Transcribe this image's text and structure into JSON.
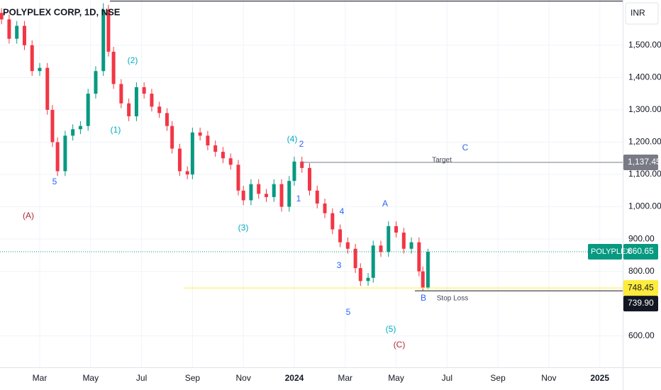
{
  "chart_data": {
    "type": "candlestick",
    "title": "POLYPLEX CORP, 1D, NSE",
    "currency": "INR",
    "symbol": "POLYPLEX",
    "up_color": "#089981",
    "down_color": "#f23645",
    "grid": true,
    "xlim": [
      0.44,
      24.9
    ],
    "ylim": [
      503,
      1640
    ],
    "xticks": [
      {
        "value": 2,
        "label": "Mar"
      },
      {
        "value": 4,
        "label": "May"
      },
      {
        "value": 6,
        "label": "Jul"
      },
      {
        "value": 8,
        "label": "Sep"
      },
      {
        "value": 10,
        "label": "Nov"
      },
      {
        "value": 12,
        "label": "2024"
      },
      {
        "value": 14,
        "label": "Mar"
      },
      {
        "value": 16,
        "label": "May"
      },
      {
        "value": 18,
        "label": "Jul"
      },
      {
        "value": 20,
        "label": "Sep"
      },
      {
        "value": 22,
        "label": "Nov"
      },
      {
        "value": 24,
        "label": "2025"
      }
    ],
    "yticks": [
      {
        "value": 600,
        "label": "600.00"
      },
      {
        "value": 800,
        "label": "800.00"
      },
      {
        "value": 900,
        "label": "900.00"
      },
      {
        "value": 1000,
        "label": "1,000.00"
      },
      {
        "value": 1100,
        "label": "1,100.00"
      },
      {
        "value": 1200,
        "label": "1,200.00"
      },
      {
        "value": 1300,
        "label": "1,300.00"
      },
      {
        "value": 1400,
        "label": "1,400.00"
      },
      {
        "value": 1500,
        "label": "1,500.00"
      }
    ],
    "x": [
      0.5,
      0.8,
      1.1,
      1.4,
      1.7,
      2.0,
      2.3,
      2.5,
      2.7,
      3.0,
      3.3,
      3.6,
      3.9,
      4.2,
      4.5,
      4.7,
      4.9,
      5.2,
      5.5,
      5.8,
      6.1,
      6.4,
      6.7,
      7.0,
      7.2,
      7.5,
      7.8,
      8.0,
      8.3,
      8.6,
      8.9,
      9.2,
      9.5,
      9.8,
      10.0,
      10.3,
      10.6,
      10.9,
      11.2,
      11.5,
      11.8,
      12.0,
      12.3,
      12.6,
      12.9,
      13.2,
      13.5,
      13.8,
      14.1,
      14.4,
      14.6,
      14.9,
      15.1,
      15.4,
      15.7,
      16.0,
      16.3,
      16.6,
      16.9,
      17.05,
      17.25
    ],
    "open": [
      1600,
      1580,
      1520,
      1560,
      1500,
      1420,
      1430,
      1300,
      1200,
      1110,
      1220,
      1240,
      1250,
      1350,
      1420,
      1610,
      1480,
      1380,
      1320,
      1280,
      1370,
      1350,
      1310,
      1290,
      1250,
      1180,
      1110,
      1100,
      1230,
      1220,
      1190,
      1170,
      1150,
      1130,
      1050,
      1020,
      1070,
      1040,
      1030,
      1070,
      1000,
      1080,
      1140,
      1120,
      1050,
      1010,
      980,
      930,
      890,
      870,
      810,
      770,
      780,
      880,
      860,
      940,
      920,
      870,
      890,
      800,
      750
    ],
    "high": [
      1615,
      1595,
      1575,
      1575,
      1515,
      1445,
      1445,
      1315,
      1215,
      1235,
      1255,
      1265,
      1365,
      1435,
      1630,
      1625,
      1495,
      1395,
      1335,
      1385,
      1385,
      1365,
      1325,
      1305,
      1265,
      1195,
      1125,
      1245,
      1245,
      1235,
      1205,
      1185,
      1165,
      1145,
      1065,
      1085,
      1085,
      1055,
      1085,
      1085,
      1095,
      1155,
      1155,
      1135,
      1065,
      1025,
      995,
      945,
      905,
      885,
      825,
      795,
      895,
      895,
      955,
      955,
      935,
      905,
      905,
      815,
      870
    ],
    "low": [
      1565,
      1505,
      1505,
      1485,
      1405,
      1405,
      1285,
      1185,
      1095,
      1095,
      1205,
      1225,
      1235,
      1335,
      1405,
      1465,
      1365,
      1305,
      1265,
      1265,
      1335,
      1295,
      1275,
      1235,
      1165,
      1095,
      1085,
      1085,
      1205,
      1175,
      1155,
      1135,
      1115,
      1035,
      1005,
      1005,
      1025,
      1015,
      1015,
      985,
      985,
      1065,
      1105,
      1035,
      995,
      965,
      915,
      875,
      855,
      795,
      755,
      755,
      765,
      845,
      845,
      905,
      855,
      855,
      785,
      740,
      745
    ],
    "close": [
      1580,
      1520,
      1560,
      1500,
      1420,
      1430,
      1300,
      1200,
      1110,
      1220,
      1240,
      1250,
      1350,
      1420,
      1610,
      1480,
      1380,
      1320,
      1280,
      1370,
      1350,
      1310,
      1290,
      1250,
      1180,
      1110,
      1100,
      1230,
      1220,
      1190,
      1170,
      1150,
      1130,
      1050,
      1020,
      1070,
      1040,
      1030,
      1070,
      1000,
      1080,
      1140,
      1120,
      1050,
      1010,
      980,
      930,
      890,
      870,
      810,
      770,
      780,
      880,
      860,
      940,
      920,
      870,
      890,
      800,
      750,
      860.65
    ],
    "price_lines": [
      {
        "value": 1137.45,
        "label": "1,137.45",
        "color": "#787b86"
      },
      {
        "value": 860.65,
        "label": "860.65",
        "color": "#089981"
      },
      {
        "value": 748.45,
        "label": "748.45",
        "color": "#ffeb3b"
      },
      {
        "value": 739.9,
        "label": "739.90",
        "color": "#131722"
      }
    ],
    "annotations": [
      {
        "text": "5",
        "color": "#2962ff"
      },
      {
        "text": "(A)",
        "color": "#b22833"
      },
      {
        "text": "(2)",
        "color": "#00acc1"
      },
      {
        "text": "(1)",
        "color": "#00acc1"
      },
      {
        "text": "(4)",
        "color": "#00acc1"
      },
      {
        "text": "2",
        "color": "#2962ff"
      },
      {
        "text": "C",
        "color": "#2962ff"
      },
      {
        "text": "Target",
        "color": "#434651"
      },
      {
        "text": "1",
        "color": "#2962ff"
      },
      {
        "text": "4",
        "color": "#2962ff"
      },
      {
        "text": "A",
        "color": "#2962ff"
      },
      {
        "text": "(3)",
        "color": "#00acc1"
      },
      {
        "text": "3",
        "color": "#2962ff"
      },
      {
        "text": "B",
        "color": "#2962ff"
      },
      {
        "text": "Stop Loss",
        "color": "#434651"
      },
      {
        "text": "5",
        "color": "#2962ff"
      },
      {
        "text": "(5)",
        "color": "#00acc1"
      },
      {
        "text": "(C)",
        "color": "#b22833"
      }
    ]
  }
}
